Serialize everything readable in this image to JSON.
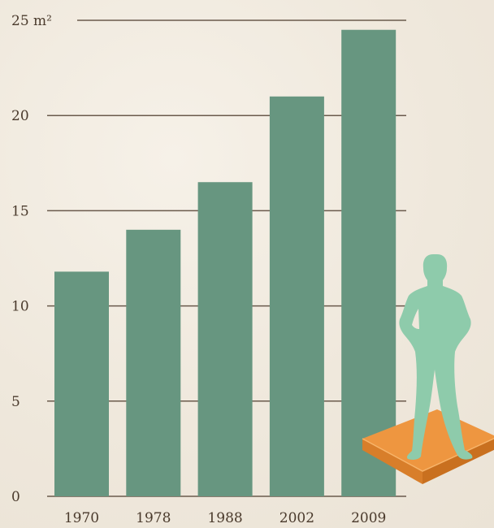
{
  "chart_data": {
    "type": "bar",
    "categories": [
      "1970",
      "1978",
      "1988",
      "2002",
      "2009"
    ],
    "values": [
      11.8,
      14.0,
      16.5,
      21.0,
      24.5
    ],
    "ylim": [
      0,
      25
    ],
    "yticks": [
      0,
      5,
      10,
      15,
      20,
      25
    ],
    "ytick_labels": [
      "0",
      "5",
      "10",
      "15",
      "20",
      "25 m²"
    ],
    "grid": true,
    "colors": {
      "bar": "#679680",
      "figure": "#8ecbab",
      "platform": "#ee9640",
      "grid": "#6a5a4c",
      "text": "#4a3a2c"
    }
  }
}
